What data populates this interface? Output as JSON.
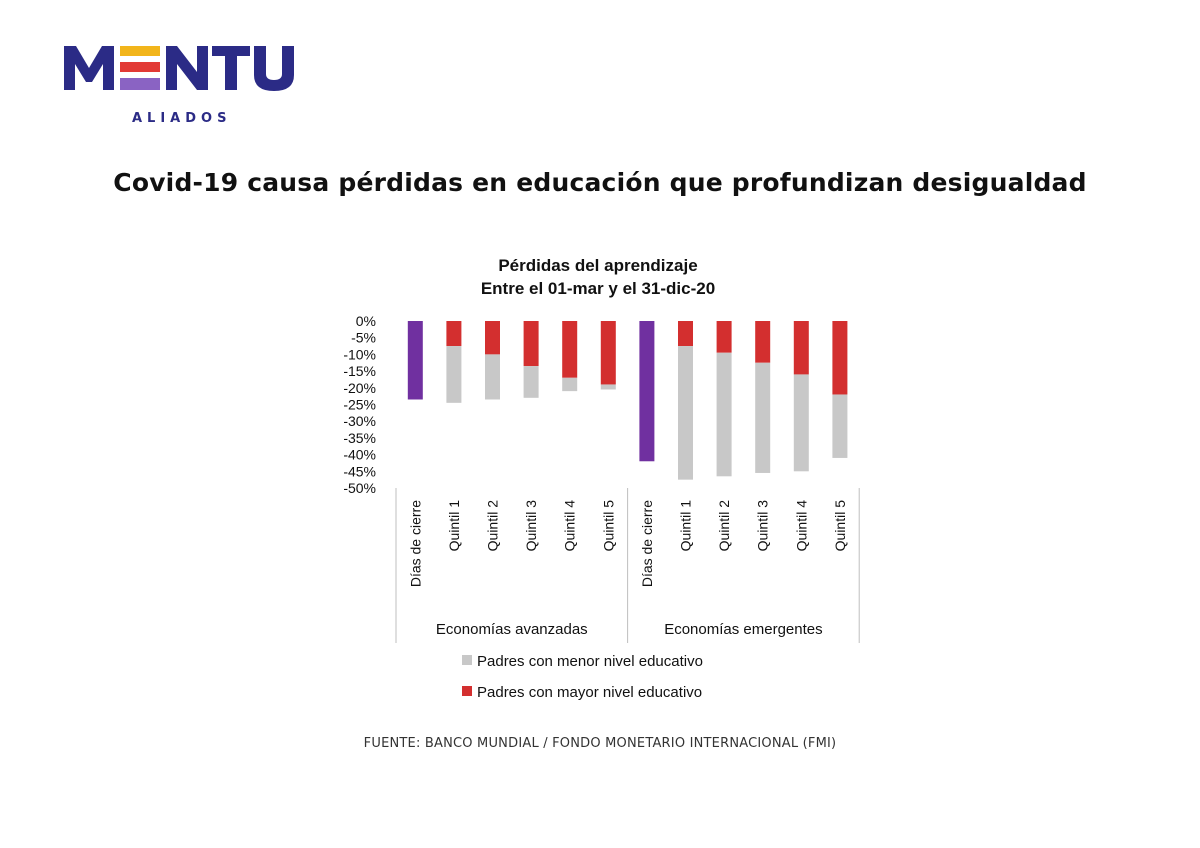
{
  "logo": {
    "wordmark": "MENTU",
    "tagline": "ALIADOS",
    "colors": {
      "navy": "#2b2b86",
      "yellow": "#f2b51b",
      "red": "#e23a35",
      "purple": "#8a63c3"
    }
  },
  "headline": "Covid-19 causa pérdidas en educación que profundizan desigualdad",
  "source": "FUENTE: BANCO MUNDIAL / FONDO MONETARIO INTERNACIONAL (FMI)",
  "chart_data": {
    "type": "bar",
    "title": "Pérdidas del aprendizaje",
    "subtitle": "Entre el 01-mar y el 31-dic-20",
    "ylim": [
      -50,
      0
    ],
    "yticks": [
      "0%",
      "-5%",
      "-10%",
      "-15%",
      "-20%",
      "-25%",
      "-30%",
      "-35%",
      "-40%",
      "-45%",
      "-50%"
    ],
    "grid": false,
    "legend_position": "bottom",
    "groups": [
      {
        "name": "Economías avanzadas",
        "categories": [
          "Días de cierre",
          "Quintil 1",
          "Quintil 2",
          "Quintil 3",
          "Quintil 4",
          "Quintil 5"
        ],
        "dias_de_cierre": -23.5,
        "mayor": [
          null,
          -7.5,
          -10,
          -13.5,
          -17,
          -19
        ],
        "menor": [
          null,
          -17,
          -13.5,
          -9.5,
          -4,
          -1.5
        ]
      },
      {
        "name": "Economías emergentes",
        "categories": [
          "Días de cierre",
          "Quintil 1",
          "Quintil 2",
          "Quintil 3",
          "Quintil 4",
          "Quintil 5"
        ],
        "dias_de_cierre": -42,
        "mayor": [
          null,
          -7.5,
          -9.5,
          -12.5,
          -16,
          -22
        ],
        "menor": [
          null,
          -40,
          -37,
          -33,
          -29,
          -19
        ]
      }
    ],
    "series": [
      {
        "name": "Padres con menor nivel educativo",
        "color": "#c8c8c8"
      },
      {
        "name": "Padres con mayor nivel educativo",
        "color": "#d32f2f"
      }
    ],
    "closure_color": "#7030a0"
  }
}
